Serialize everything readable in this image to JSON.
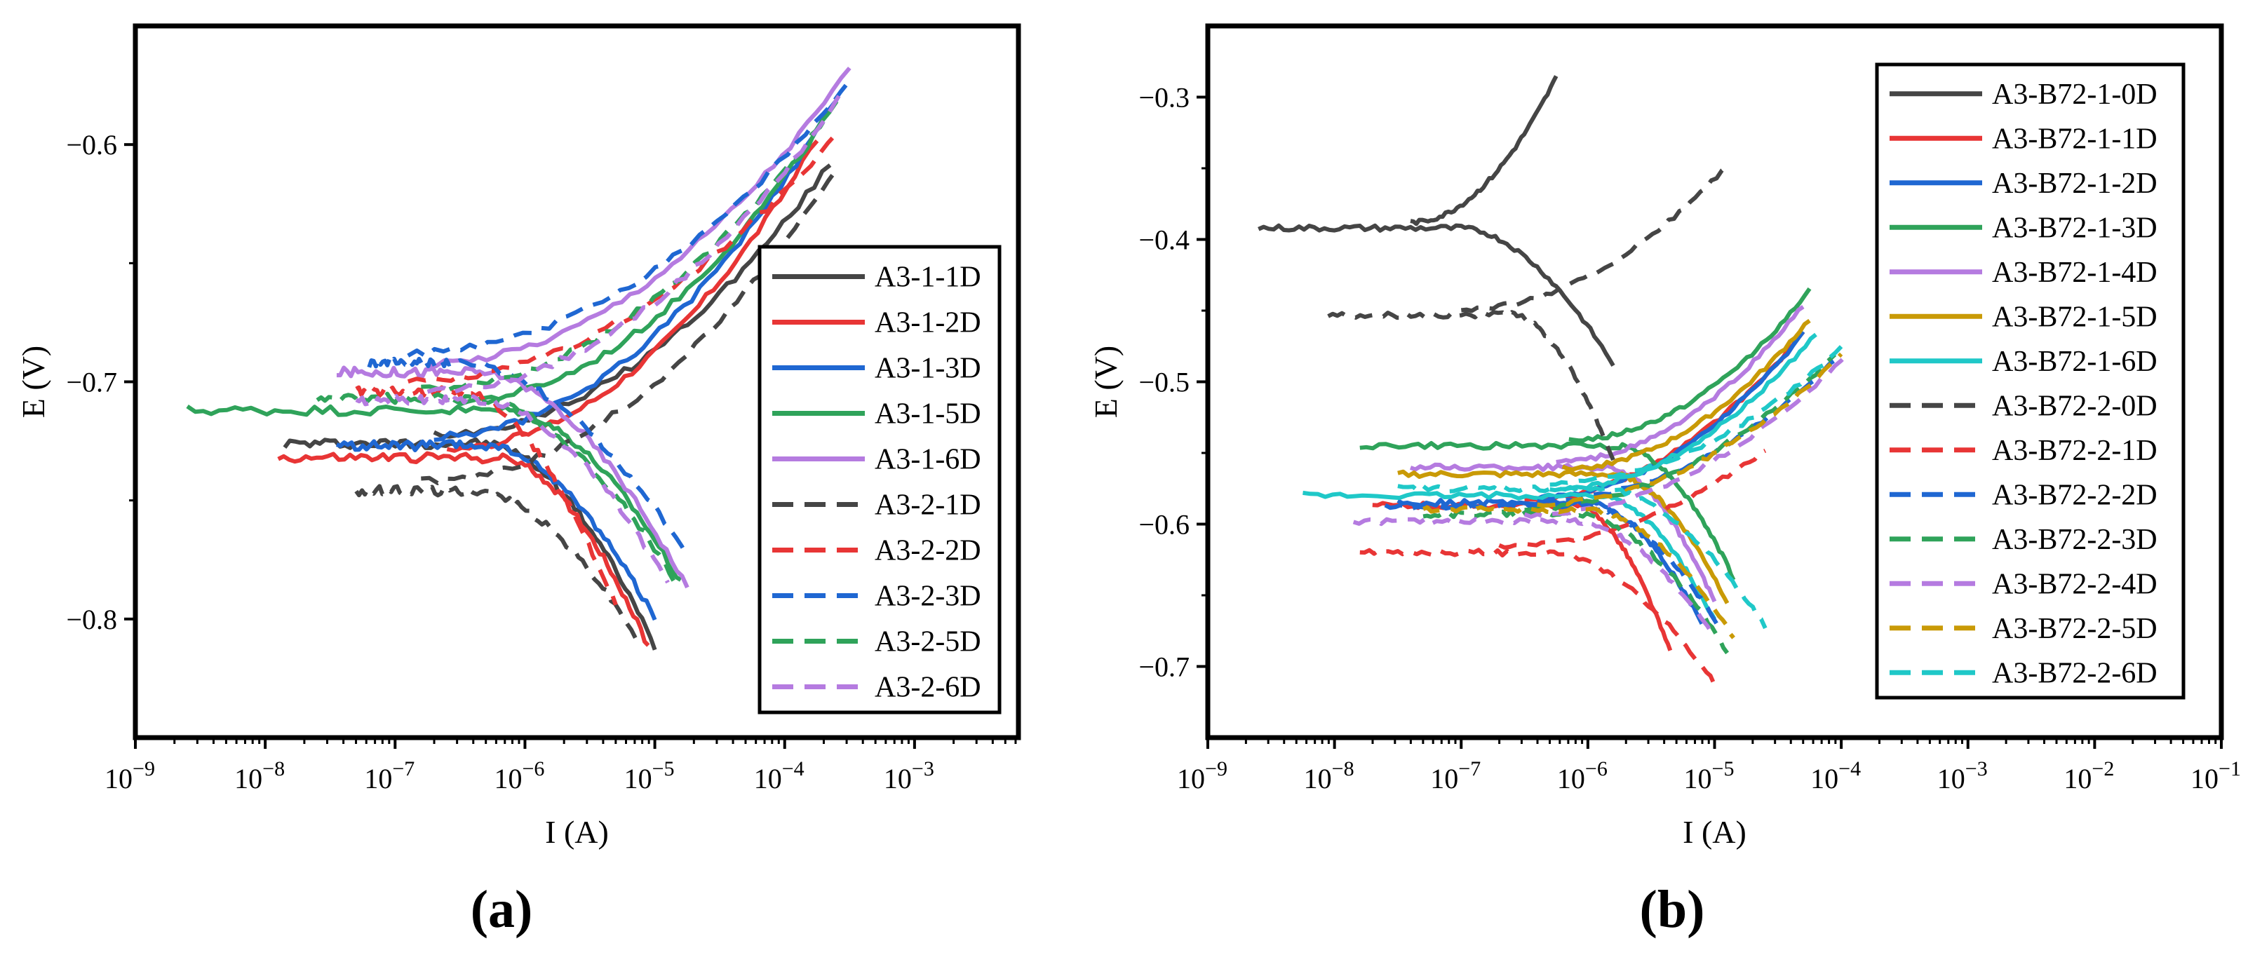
{
  "chart_data": [
    {
      "panel": "(a)",
      "type": "line",
      "xscale": "log",
      "xlabel": "I (A)",
      "ylabel": "E (V)",
      "xlim_exp": [
        -9,
        -2.2
      ],
      "ylim": [
        -0.85,
        -0.55
      ],
      "x_tick_exponents": [
        -9,
        -8,
        -7,
        -6,
        -5,
        -4,
        -3
      ],
      "y_ticks": [
        -0.8,
        -0.7,
        -0.6
      ],
      "y_tick_labels": [
        "−0.8",
        "−0.7",
        "−0.6"
      ],
      "legend_position": "right-middle",
      "series": [
        {
          "name": "A3-1-1D",
          "color": "#454545",
          "dash": "solid",
          "ecorr": -0.726,
          "icorr_exp": -6.3,
          "lim_start": -7.85,
          "lim_end_low": -5.0,
          "lim_end_high": -3.65,
          "drop_end": -0.812,
          "rise_end": -0.612
        },
        {
          "name": "A3-1-2D",
          "color": "#e83535",
          "dash": "solid",
          "ecorr": -0.732,
          "icorr_exp": -6.2,
          "lim_start": -7.9,
          "lim_end_low": -5.05,
          "lim_end_high": -3.75,
          "drop_end": -0.812,
          "rise_end": -0.602
        },
        {
          "name": "A3-1-3D",
          "color": "#1f67d2",
          "dash": "solid",
          "ecorr": -0.727,
          "icorr_exp": -6.3,
          "lim_start": -7.45,
          "lim_end_low": -5.0,
          "lim_end_high": -3.6,
          "drop_end": -0.8,
          "rise_end": -0.585
        },
        {
          "name": "A3-1-5D",
          "color": "#2fa35a",
          "dash": "solid",
          "ecorr": -0.712,
          "icorr_exp": -6.15,
          "lim_start": -8.6,
          "lim_end_low": -4.8,
          "lim_end_high": -3.65,
          "drop_end": -0.785,
          "rise_end": -0.59
        },
        {
          "name": "A3-1-6D",
          "color": "#b57be0",
          "dash": "solid",
          "ecorr": -0.696,
          "icorr_exp": -6.35,
          "lim_start": -7.45,
          "lim_end_low": -4.75,
          "lim_end_high": -3.5,
          "drop_end": -0.787,
          "rise_end": -0.572
        },
        {
          "name": "A3-2-1D",
          "color": "#454545",
          "dash": "dashed",
          "ecorr": -0.746,
          "icorr_exp": -6.4,
          "lim_start": -7.3,
          "lim_end_low": -5.15,
          "lim_end_high": -3.6,
          "drop_end": -0.807,
          "rise_end": -0.615
        },
        {
          "name": "A3-2-2D",
          "color": "#e83535",
          "dash": "dashed",
          "ecorr": -0.704,
          "icorr_exp": -6.5,
          "lim_start": -7.3,
          "lim_end_low": -5.3,
          "lim_end_high": -3.6,
          "drop_end": -0.795,
          "rise_end": -0.6
        },
        {
          "name": "A3-2-3D",
          "color": "#1f67d2",
          "dash": "dashed",
          "ecorr": -0.692,
          "icorr_exp": -6.5,
          "lim_start": -7.2,
          "lim_end_low": -4.75,
          "lim_end_high": -3.5,
          "drop_end": -0.773,
          "rise_end": -0.578
        },
        {
          "name": "A3-2-5D",
          "color": "#2fa35a",
          "dash": "dashed",
          "ecorr": -0.707,
          "icorr_exp": -6.4,
          "lim_start": -7.6,
          "lim_end_low": -4.85,
          "lim_end_high": -3.6,
          "drop_end": -0.783,
          "rise_end": -0.587
        },
        {
          "name": "A3-2-6D",
          "color": "#b57be0",
          "dash": "dashed",
          "ecorr": -0.708,
          "icorr_exp": -6.35,
          "lim_start": -7.3,
          "lim_end_low": -4.9,
          "lim_end_high": -3.55,
          "drop_end": -0.785,
          "rise_end": -0.582
        }
      ]
    },
    {
      "panel": "(b)",
      "type": "line",
      "xscale": "log",
      "xlabel": "I (A)",
      "ylabel": "E (V)",
      "xlim_exp": [
        -9,
        -1
      ],
      "ylim": [
        -0.75,
        -0.25
      ],
      "x_tick_exponents": [
        -9,
        -8,
        -7,
        -6,
        -5,
        -4,
        -3,
        -2,
        -1
      ],
      "y_ticks": [
        -0.7,
        -0.6,
        -0.5,
        -0.4,
        -0.3
      ],
      "y_tick_labels": [
        "−0.7",
        "−0.6",
        "−0.5",
        "−0.4",
        "−0.3"
      ],
      "legend_position": "top-right",
      "series": [
        {
          "name": "A3-B72-1-0D",
          "color": "#454545",
          "dash": "solid",
          "ecorr": -0.392,
          "icorr_exp": -7.0,
          "lim_start": -8.6,
          "lim_end_low": -5.8,
          "lim_end_high": -6.25,
          "drop_end": -0.488,
          "rise_end": -0.29
        },
        {
          "name": "A3-B72-1-1D",
          "color": "#e83535",
          "dash": "solid",
          "ecorr": -0.587,
          "icorr_exp": -6.1,
          "lim_start": -7.7,
          "lim_end_low": -5.35,
          "lim_end_high": -4.3,
          "drop_end": -0.69,
          "rise_end": -0.47
        },
        {
          "name": "A3-B72-1-2D",
          "color": "#1f67d2",
          "dash": "solid",
          "ecorr": -0.585,
          "icorr_exp": -6.0,
          "lim_start": -7.5,
          "lim_end_low": -5.1,
          "lim_end_high": -4.3,
          "drop_end": -0.67,
          "rise_end": -0.47
        },
        {
          "name": "A3-B72-1-3D",
          "color": "#2fa35a",
          "dash": "solid",
          "ecorr": -0.545,
          "icorr_exp": -5.75,
          "lim_start": -7.8,
          "lim_end_low": -4.85,
          "lim_end_high": -4.25,
          "drop_end": -0.638,
          "rise_end": -0.44
        },
        {
          "name": "A3-B72-1-4D",
          "color": "#b57be0",
          "dash": "solid",
          "ecorr": -0.56,
          "icorr_exp": -5.85,
          "lim_start": -7.4,
          "lim_end_low": -5.0,
          "lim_end_high": -4.3,
          "drop_end": -0.655,
          "rise_end": -0.45
        },
        {
          "name": "A3-B72-1-5D",
          "color": "#c99a06",
          "dash": "solid",
          "ecorr": -0.565,
          "icorr_exp": -5.8,
          "lim_start": -7.5,
          "lim_end_low": -4.9,
          "lim_end_high": -4.25,
          "drop_end": -0.655,
          "rise_end": -0.46
        },
        {
          "name": "A3-B72-1-6D",
          "color": "#1fc8c8",
          "dash": "solid",
          "ecorr": -0.58,
          "icorr_exp": -5.9,
          "lim_start": -8.25,
          "lim_end_low": -5.0,
          "lim_end_high": -4.2,
          "drop_end": -0.668,
          "rise_end": -0.47
        },
        {
          "name": "A3-B72-2-0D",
          "color": "#454545",
          "dash": "dashed",
          "ecorr": -0.453,
          "icorr_exp": -6.6,
          "lim_start": -8.05,
          "lim_end_low": -5.8,
          "lim_end_high": -4.9,
          "drop_end": -0.555,
          "rise_end": -0.352
        },
        {
          "name": "A3-B72-2-1D",
          "color": "#e83535",
          "dash": "dashed",
          "ecorr": -0.62,
          "icorr_exp": -6.3,
          "lim_start": -7.8,
          "lim_end_low": -5.0,
          "lim_end_high": -4.6,
          "drop_end": -0.712,
          "rise_end": -0.552
        },
        {
          "name": "A3-B72-2-2D",
          "color": "#1f67d2",
          "dash": "dashed",
          "ecorr": -0.588,
          "icorr_exp": -6.0,
          "lim_start": -7.6,
          "lim_end_low": -4.95,
          "lim_end_high": -4.0,
          "drop_end": -0.675,
          "rise_end": -0.485
        },
        {
          "name": "A3-B72-2-3D",
          "color": "#2fa35a",
          "dash": "dashed",
          "ecorr": -0.593,
          "icorr_exp": -6.1,
          "lim_start": -7.3,
          "lim_end_low": -4.9,
          "lim_end_high": -4.05,
          "drop_end": -0.69,
          "rise_end": -0.485
        },
        {
          "name": "A3-B72-2-4D",
          "color": "#b57be0",
          "dash": "dashed",
          "ecorr": -0.598,
          "icorr_exp": -6.1,
          "lim_start": -7.85,
          "lim_end_low": -5.0,
          "lim_end_high": -3.95,
          "drop_end": -0.68,
          "rise_end": -0.485
        },
        {
          "name": "A3-B72-2-5D",
          "color": "#c99a06",
          "dash": "dashed",
          "ecorr": -0.59,
          "icorr_exp": -6.0,
          "lim_start": -7.3,
          "lim_end_low": -4.85,
          "lim_end_high": -4.0,
          "drop_end": -0.68,
          "rise_end": -0.485
        },
        {
          "name": "A3-B72-2-6D",
          "color": "#1fc8c8",
          "dash": "dashed",
          "ecorr": -0.575,
          "icorr_exp": -5.9,
          "lim_start": -7.5,
          "lim_end_low": -4.6,
          "lim_end_high": -4.0,
          "drop_end": -0.672,
          "rise_end": -0.48
        }
      ]
    }
  ]
}
